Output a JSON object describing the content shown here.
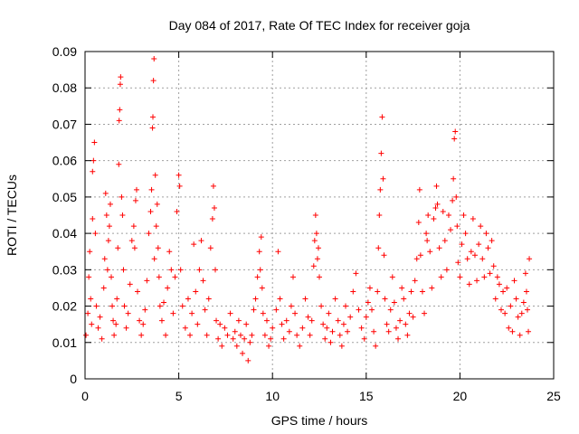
{
  "chart_data": {
    "type": "scatter",
    "title": "Day 084 of 2017, Rate Of TEC Index for receiver goja",
    "xlabel": "GPS time / hours",
    "ylabel": "ROTI / TECUs",
    "xlim": [
      0,
      25
    ],
    "ylim": [
      0,
      0.09
    ],
    "xticks": [
      0,
      5,
      10,
      15,
      20,
      25
    ],
    "xtick_labels": [
      "0",
      "5",
      "10",
      "15",
      "20",
      "25"
    ],
    "yticks": [
      0,
      0.01,
      0.02,
      0.03,
      0.04,
      0.05,
      0.06,
      0.07,
      0.08,
      0.09
    ],
    "ytick_labels": [
      "0",
      "0.01",
      "0.02",
      "0.03",
      "0.04",
      "0.05",
      "0.06",
      "0.07",
      "0.08",
      "0.09"
    ],
    "grid": true,
    "marker": "+",
    "color": "#ff0000",
    "series": [
      {
        "name": "ROTI",
        "points": [
          [
            0.05,
            0.012
          ],
          [
            0.15,
            0.018
          ],
          [
            0.2,
            0.028
          ],
          [
            0.25,
            0.035
          ],
          [
            0.3,
            0.022
          ],
          [
            0.35,
            0.015
          ],
          [
            0.4,
            0.044
          ],
          [
            0.4,
            0.057
          ],
          [
            0.45,
            0.06
          ],
          [
            0.5,
            0.065
          ],
          [
            0.55,
            0.04
          ],
          [
            0.6,
            0.02
          ],
          [
            0.7,
            0.014
          ],
          [
            0.8,
            0.017
          ],
          [
            0.9,
            0.011
          ],
          [
            1.0,
            0.025
          ],
          [
            1.05,
            0.033
          ],
          [
            1.1,
            0.051
          ],
          [
            1.15,
            0.045
          ],
          [
            1.2,
            0.03
          ],
          [
            1.25,
            0.038
          ],
          [
            1.3,
            0.042
          ],
          [
            1.35,
            0.048
          ],
          [
            1.4,
            0.028
          ],
          [
            1.45,
            0.02
          ],
          [
            1.5,
            0.016
          ],
          [
            1.55,
            0.012
          ],
          [
            1.65,
            0.015
          ],
          [
            1.7,
            0.022
          ],
          [
            1.75,
            0.036
          ],
          [
            1.8,
            0.059
          ],
          [
            1.82,
            0.071
          ],
          [
            1.85,
            0.074
          ],
          [
            1.88,
            0.081
          ],
          [
            1.9,
            0.083
          ],
          [
            1.95,
            0.05
          ],
          [
            2.0,
            0.045
          ],
          [
            2.05,
            0.03
          ],
          [
            2.1,
            0.02
          ],
          [
            2.2,
            0.014
          ],
          [
            2.3,
            0.018
          ],
          [
            2.4,
            0.026
          ],
          [
            2.5,
            0.038
          ],
          [
            2.6,
            0.042
          ],
          [
            2.65,
            0.036
          ],
          [
            2.7,
            0.049
          ],
          [
            2.75,
            0.052
          ],
          [
            2.8,
            0.024
          ],
          [
            2.9,
            0.016
          ],
          [
            3.0,
            0.012
          ],
          [
            3.1,
            0.015
          ],
          [
            3.2,
            0.019
          ],
          [
            3.3,
            0.027
          ],
          [
            3.4,
            0.04
          ],
          [
            3.5,
            0.046
          ],
          [
            3.55,
            0.052
          ],
          [
            3.6,
            0.069
          ],
          [
            3.62,
            0.072
          ],
          [
            3.65,
            0.082
          ],
          [
            3.68,
            0.088
          ],
          [
            3.7,
            0.033
          ],
          [
            3.75,
            0.056
          ],
          [
            3.8,
            0.042
          ],
          [
            3.85,
            0.048
          ],
          [
            3.9,
            0.036
          ],
          [
            3.95,
            0.028
          ],
          [
            4.0,
            0.02
          ],
          [
            4.1,
            0.016
          ],
          [
            4.2,
            0.021
          ],
          [
            4.3,
            0.012
          ],
          [
            4.4,
            0.025
          ],
          [
            4.5,
            0.035
          ],
          [
            4.6,
            0.03
          ],
          [
            4.7,
            0.018
          ],
          [
            4.8,
            0.028
          ],
          [
            4.9,
            0.046
          ],
          [
            5.0,
            0.056
          ],
          [
            5.05,
            0.053
          ],
          [
            5.1,
            0.03
          ],
          [
            5.2,
            0.02
          ],
          [
            5.35,
            0.014
          ],
          [
            5.5,
            0.022
          ],
          [
            5.6,
            0.012
          ],
          [
            5.7,
            0.018
          ],
          [
            5.8,
            0.037
          ],
          [
            5.9,
            0.024
          ],
          [
            6.0,
            0.015
          ],
          [
            6.1,
            0.03
          ],
          [
            6.2,
            0.038
          ],
          [
            6.3,
            0.027
          ],
          [
            6.4,
            0.019
          ],
          [
            6.5,
            0.012
          ],
          [
            6.6,
            0.022
          ],
          [
            6.7,
            0.036
          ],
          [
            6.8,
            0.044
          ],
          [
            6.85,
            0.053
          ],
          [
            6.9,
            0.047
          ],
          [
            6.95,
            0.03
          ],
          [
            7.0,
            0.016
          ],
          [
            7.1,
            0.011
          ],
          [
            7.2,
            0.015
          ],
          [
            7.3,
            0.009
          ],
          [
            7.45,
            0.014
          ],
          [
            7.6,
            0.012
          ],
          [
            7.75,
            0.018
          ],
          [
            7.9,
            0.011
          ],
          [
            8.0,
            0.013
          ],
          [
            8.1,
            0.009
          ],
          [
            8.2,
            0.016
          ],
          [
            8.3,
            0.012
          ],
          [
            8.4,
            0.007
          ],
          [
            8.5,
            0.011
          ],
          [
            8.6,
            0.015
          ],
          [
            8.7,
            0.005
          ],
          [
            8.8,
            0.01
          ],
          [
            8.9,
            0.012
          ],
          [
            9.0,
            0.019
          ],
          [
            9.1,
            0.022
          ],
          [
            9.2,
            0.028
          ],
          [
            9.3,
            0.035
          ],
          [
            9.35,
            0.03
          ],
          [
            9.4,
            0.039
          ],
          [
            9.45,
            0.025
          ],
          [
            9.5,
            0.018
          ],
          [
            9.6,
            0.012
          ],
          [
            9.7,
            0.016
          ],
          [
            9.8,
            0.009
          ],
          [
            9.9,
            0.011
          ],
          [
            10.0,
            0.014
          ],
          [
            10.2,
            0.019
          ],
          [
            10.3,
            0.035
          ],
          [
            10.4,
            0.022
          ],
          [
            10.5,
            0.015
          ],
          [
            10.6,
            0.011
          ],
          [
            10.75,
            0.016
          ],
          [
            10.9,
            0.013
          ],
          [
            11.0,
            0.02
          ],
          [
            11.1,
            0.028
          ],
          [
            11.2,
            0.018
          ],
          [
            11.3,
            0.012
          ],
          [
            11.45,
            0.009
          ],
          [
            11.6,
            0.014
          ],
          [
            11.75,
            0.022
          ],
          [
            11.9,
            0.017
          ],
          [
            12.0,
            0.012
          ],
          [
            12.1,
            0.016
          ],
          [
            12.2,
            0.031
          ],
          [
            12.25,
            0.038
          ],
          [
            12.3,
            0.045
          ],
          [
            12.35,
            0.04
          ],
          [
            12.4,
            0.033
          ],
          [
            12.45,
            0.036
          ],
          [
            12.5,
            0.028
          ],
          [
            12.6,
            0.02
          ],
          [
            12.7,
            0.015
          ],
          [
            12.8,
            0.011
          ],
          [
            12.9,
            0.014
          ],
          [
            13.0,
            0.018
          ],
          [
            13.1,
            0.01
          ],
          [
            13.2,
            0.013
          ],
          [
            13.35,
            0.022
          ],
          [
            13.5,
            0.016
          ],
          [
            13.6,
            0.012
          ],
          [
            13.7,
            0.009
          ],
          [
            13.8,
            0.015
          ],
          [
            13.9,
            0.02
          ],
          [
            14.0,
            0.013
          ],
          [
            14.15,
            0.017
          ],
          [
            14.3,
            0.024
          ],
          [
            14.45,
            0.029
          ],
          [
            14.6,
            0.019
          ],
          [
            14.75,
            0.014
          ],
          [
            14.9,
            0.011
          ],
          [
            15.0,
            0.017
          ],
          [
            15.1,
            0.021
          ],
          [
            15.2,
            0.025
          ],
          [
            15.3,
            0.019
          ],
          [
            15.4,
            0.013
          ],
          [
            15.5,
            0.009
          ],
          [
            15.6,
            0.024
          ],
          [
            15.65,
            0.036
          ],
          [
            15.7,
            0.045
          ],
          [
            15.75,
            0.052
          ],
          [
            15.8,
            0.062
          ],
          [
            15.85,
            0.072
          ],
          [
            15.9,
            0.055
          ],
          [
            15.95,
            0.034
          ],
          [
            16.0,
            0.022
          ],
          [
            16.1,
            0.015
          ],
          [
            16.2,
            0.013
          ],
          [
            16.3,
            0.019
          ],
          [
            16.4,
            0.028
          ],
          [
            16.5,
            0.021
          ],
          [
            16.6,
            0.014
          ],
          [
            16.7,
            0.011
          ],
          [
            16.8,
            0.016
          ],
          [
            16.9,
            0.025
          ],
          [
            17.0,
            0.022
          ],
          [
            17.1,
            0.015
          ],
          [
            17.2,
            0.012
          ],
          [
            17.3,
            0.018
          ],
          [
            17.4,
            0.024
          ],
          [
            17.5,
            0.017
          ],
          [
            17.6,
            0.027
          ],
          [
            17.7,
            0.033
          ],
          [
            17.8,
            0.043
          ],
          [
            17.85,
            0.052
          ],
          [
            17.9,
            0.034
          ],
          [
            18.0,
            0.024
          ],
          [
            18.1,
            0.018
          ],
          [
            18.2,
            0.04
          ],
          [
            18.25,
            0.038
          ],
          [
            18.3,
            0.045
          ],
          [
            18.4,
            0.035
          ],
          [
            18.5,
            0.025
          ],
          [
            18.6,
            0.044
          ],
          [
            18.7,
            0.047
          ],
          [
            18.75,
            0.053
          ],
          [
            18.8,
            0.048
          ],
          [
            18.9,
            0.036
          ],
          [
            19.0,
            0.028
          ],
          [
            19.1,
            0.046
          ],
          [
            19.2,
            0.038
          ],
          [
            19.3,
            0.03
          ],
          [
            19.4,
            0.045
          ],
          [
            19.5,
            0.041
          ],
          [
            19.6,
            0.049
          ],
          [
            19.65,
            0.055
          ],
          [
            19.7,
            0.066
          ],
          [
            19.75,
            0.068
          ],
          [
            19.8,
            0.05
          ],
          [
            19.85,
            0.042
          ],
          [
            19.9,
            0.032
          ],
          [
            20.0,
            0.028
          ],
          [
            20.1,
            0.037
          ],
          [
            20.2,
            0.045
          ],
          [
            20.3,
            0.04
          ],
          [
            20.4,
            0.033
          ],
          [
            20.5,
            0.026
          ],
          [
            20.6,
            0.035
          ],
          [
            20.7,
            0.044
          ],
          [
            20.8,
            0.034
          ],
          [
            20.9,
            0.027
          ],
          [
            21.0,
            0.037
          ],
          [
            21.1,
            0.042
          ],
          [
            21.2,
            0.033
          ],
          [
            21.3,
            0.028
          ],
          [
            21.4,
            0.04
          ],
          [
            21.5,
            0.036
          ],
          [
            21.6,
            0.029
          ],
          [
            21.7,
            0.038
          ],
          [
            21.8,
            0.031
          ],
          [
            21.9,
            0.022
          ],
          [
            22.0,
            0.028
          ],
          [
            22.1,
            0.026
          ],
          [
            22.2,
            0.019
          ],
          [
            22.3,
            0.024
          ],
          [
            22.4,
            0.018
          ],
          [
            22.5,
            0.025
          ],
          [
            22.6,
            0.014
          ],
          [
            22.7,
            0.02
          ],
          [
            22.8,
            0.013
          ],
          [
            22.9,
            0.027
          ],
          [
            23.0,
            0.022
          ],
          [
            23.1,
            0.017
          ],
          [
            23.2,
            0.012
          ],
          [
            23.3,
            0.018
          ],
          [
            23.4,
            0.021
          ],
          [
            23.5,
            0.029
          ],
          [
            23.55,
            0.024
          ],
          [
            23.6,
            0.019
          ],
          [
            23.65,
            0.013
          ],
          [
            23.7,
            0.033
          ]
        ]
      }
    ]
  }
}
